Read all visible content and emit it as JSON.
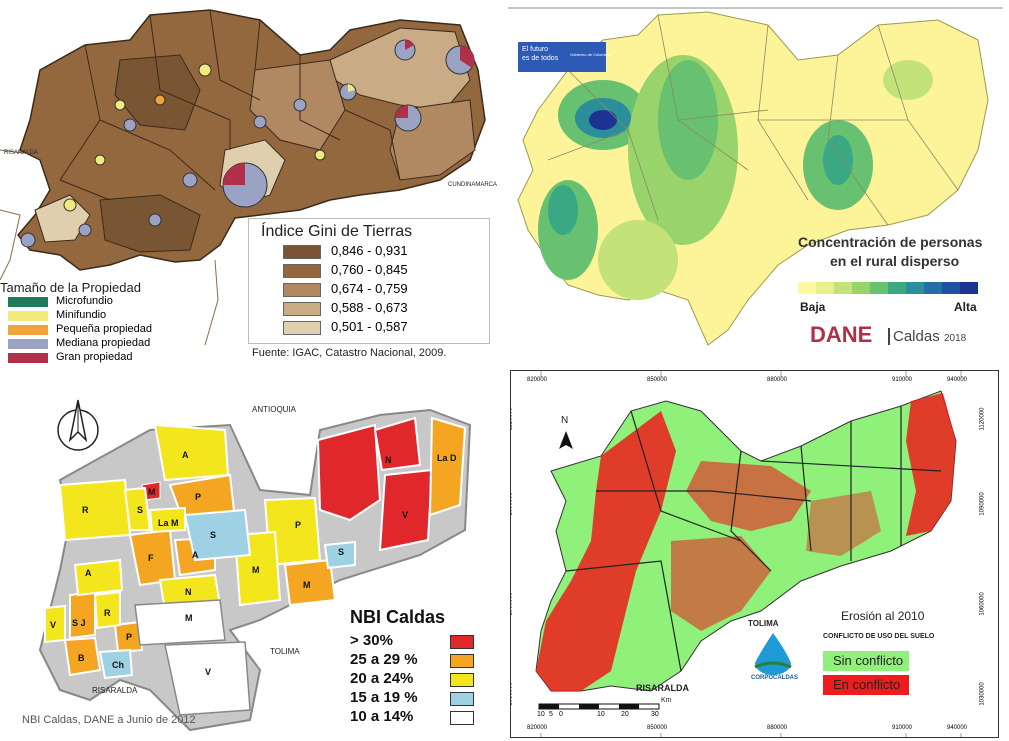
{
  "panel_gini": {
    "region_labels": {
      "west": "RISARALDA",
      "east": "CUNDINAMARCA"
    },
    "legend_title": "Índice Gini de Tierras",
    "legend": [
      {
        "label": "0,846 - 0,931",
        "color": "#7a5534"
      },
      {
        "label": "0,760 - 0,845",
        "color": "#94683f"
      },
      {
        "label": "0,674 - 0,759",
        "color": "#b08861"
      },
      {
        "label": "0,588 - 0,673",
        "color": "#c9ab85"
      },
      {
        "label": "0,501 - 0,587",
        "color": "#e0cfae"
      }
    ],
    "size_title": "Tamaño de la Propiedad",
    "size_legend": [
      {
        "label": "Microfundio",
        "color": "#1f7a5a"
      },
      {
        "label": "Minifundio",
        "color": "#f2ea7a"
      },
      {
        "label": "Pequeña propiedad",
        "color": "#f2a23a"
      },
      {
        "label": "Mediana propiedad",
        "color": "#9aa3c4"
      },
      {
        "label": "Gran propiedad",
        "color": "#b0304a"
      }
    ],
    "source": "Fuente: IGAC, Catastro Nacional, 2009."
  },
  "panel_density": {
    "logo_line1": "El futuro",
    "logo_line2": "es de todos",
    "logo_sub": "Gobierno de Colombia",
    "title_line1": "Concentración de personas",
    "title_line2": "en el rural disperso",
    "scale_low": "Baja",
    "scale_high": "Alta",
    "scale_colors": [
      "#fdf8a0",
      "#e8f08a",
      "#c4e27a",
      "#98d36c",
      "#68c071",
      "#3aa882",
      "#2a8f9a",
      "#266fa6",
      "#2050a2",
      "#1c3394"
    ],
    "brand": "DANE",
    "brand_sub": "Caldas",
    "brand_year": "2018"
  },
  "panel_nbi": {
    "region_labels": {
      "north": "ANTIOQUIA",
      "south_east": "TOLIMA",
      "south_west": "RISARALDA"
    },
    "municipality_labels": [
      "A",
      "P",
      "M",
      "R",
      "S",
      "La M",
      "S",
      "F",
      "A",
      "N",
      "A",
      "R",
      "S J",
      "V",
      "B",
      "P",
      "Ch",
      "M",
      "V",
      "P",
      "M",
      "M",
      "S",
      "N",
      "V",
      "La D"
    ],
    "legend_title": "NBI Caldas",
    "legend": [
      {
        "label": "> 30%",
        "color": "#e0282c"
      },
      {
        "label": "25 a 29 %",
        "color": "#f4a623"
      },
      {
        "label": "20 a 24%",
        "color": "#f4e61d"
      },
      {
        "label": "15 a 19 %",
        "color": "#9fd1e4"
      },
      {
        "label": "10 a 14%",
        "color": "#ffffff"
      }
    ],
    "source": "NBI Caldas, DANE a Junio de 2012"
  },
  "panel_erosion": {
    "x_ticks": [
      "820000",
      "850000",
      "880000",
      "910000",
      "940000"
    ],
    "y_ticks": [
      "1030000",
      "1060000",
      "1090000",
      "1120000"
    ],
    "region_labels": {
      "tolima": "TOLIMA",
      "risaralda": "RISARALDA"
    },
    "title": "Erosión al 2010",
    "legend_title": "CONFLICTO DE USO DEL SUELO",
    "legend": [
      {
        "label": "Sin conflicto",
        "color": "#8ff07a"
      },
      {
        "label": "En conflicto",
        "color": "#ee1c1c"
      }
    ],
    "logo": "CORPOCALDAS",
    "scale_ticks": [
      "10",
      "5",
      "0",
      "10",
      "20",
      "30"
    ],
    "scale_unit": "Km",
    "north": "N"
  }
}
